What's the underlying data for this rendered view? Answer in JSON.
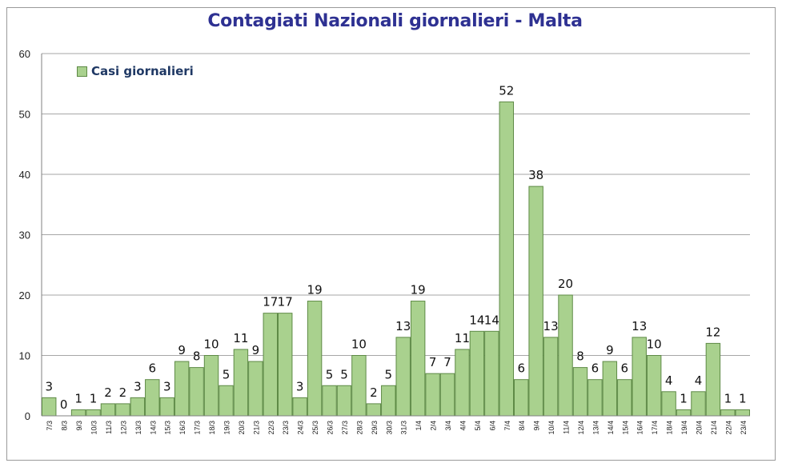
{
  "chart_data": {
    "type": "bar",
    "title": "Contagiati Nazionali giornalieri - Malta",
    "xlabel": "",
    "ylabel": "",
    "ylim": [
      0,
      60
    ],
    "yticks": [
      0,
      10,
      20,
      30,
      40,
      50,
      60
    ],
    "grid": true,
    "legend_position": "top-left",
    "colors": {
      "bar_fill": "#a9d18e",
      "bar_stroke": "#5e8a46",
      "title": "#2e3192",
      "legend_text": "#1f3864",
      "grid": "#a6a6a6"
    },
    "categories": [
      "7/3",
      "8/3",
      "9/3",
      "10/3",
      "11/3",
      "12/3",
      "13/3",
      "14/3",
      "15/3",
      "16/3",
      "17/3",
      "18/3",
      "19/3",
      "20/3",
      "21/3",
      "22/3",
      "23/3",
      "24/3",
      "25/3",
      "26/3",
      "27/3",
      "28/3",
      "29/3",
      "30/3",
      "31/3",
      "1/4",
      "2/4",
      "3/4",
      "4/4",
      "5/4",
      "6/4",
      "7/4",
      "8/4",
      "9/4",
      "10/4",
      "11/4",
      "12/4",
      "13/4",
      "14/4",
      "15/4",
      "16/4",
      "17/4",
      "18/4",
      "19/4",
      "20/4",
      "21/4",
      "22/4",
      "23/4"
    ],
    "series": [
      {
        "name": "Casi giornalieri",
        "values": [
          3,
          0,
          1,
          1,
          2,
          2,
          3,
          6,
          3,
          9,
          8,
          10,
          5,
          11,
          9,
          17,
          17,
          3,
          19,
          5,
          5,
          10,
          2,
          5,
          13,
          19,
          7,
          7,
          11,
          14,
          14,
          52,
          6,
          38,
          13,
          20,
          8,
          6,
          9,
          6,
          13,
          10,
          4,
          1,
          4,
          12,
          1,
          1
        ]
      }
    ]
  }
}
